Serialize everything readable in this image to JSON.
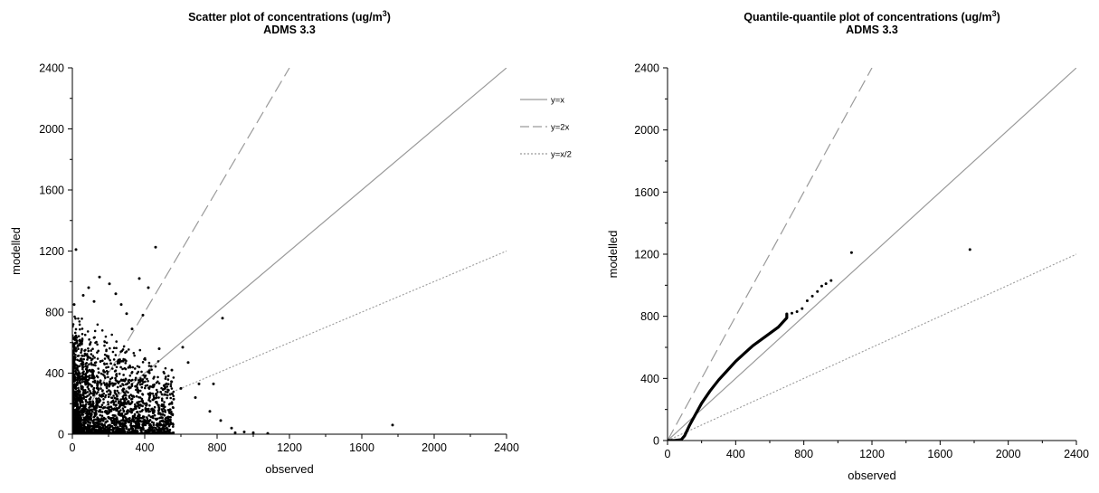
{
  "chart_data": [
    {
      "type": "scatter",
      "title": "Scatter plot of concentrations (ug/m",
      "title_superscript": "3",
      "title_suffix": ")",
      "subtitle": "ADMS 3.3",
      "xlabel": "observed",
      "ylabel": "modelled",
      "xlim": [
        0,
        2400
      ],
      "ylim": [
        0,
        2400
      ],
      "xticks": [
        "0",
        "400",
        "800",
        "1200",
        "1600",
        "2000",
        "2400"
      ],
      "yticks": [
        "0",
        "400",
        "800",
        "1200",
        "1600",
        "2000",
        "2400"
      ],
      "grid": false,
      "legend_placement": "right",
      "reference_lines": [
        {
          "label": "y=x",
          "slope": 1,
          "style": "solid",
          "color": "#9a9a9a"
        },
        {
          "label": "y=2x",
          "slope": 2,
          "style": "dashed",
          "color": "#9a9a9a"
        },
        {
          "label": "y=x/2",
          "slope": 0.5,
          "style": "dotted",
          "color": "#9a9a9a"
        }
      ],
      "cluster": {
        "description_count": 2600,
        "seed": 12345
      },
      "points": [
        {
          "x": 20,
          "y": 1210
        },
        {
          "x": 460,
          "y": 1225
        },
        {
          "x": 830,
          "y": 760
        },
        {
          "x": 1770,
          "y": 60
        },
        {
          "x": 150,
          "y": 1030
        },
        {
          "x": 370,
          "y": 1020
        },
        {
          "x": 420,
          "y": 960
        },
        {
          "x": 205,
          "y": 985
        },
        {
          "x": 240,
          "y": 920
        },
        {
          "x": 90,
          "y": 960
        },
        {
          "x": 60,
          "y": 910
        },
        {
          "x": 390,
          "y": 780
        },
        {
          "x": 480,
          "y": 560
        },
        {
          "x": 610,
          "y": 570
        },
        {
          "x": 640,
          "y": 470
        },
        {
          "x": 550,
          "y": 420
        },
        {
          "x": 700,
          "y": 330
        },
        {
          "x": 780,
          "y": 330
        },
        {
          "x": 760,
          "y": 150
        },
        {
          "x": 820,
          "y": 90
        },
        {
          "x": 880,
          "y": 40
        },
        {
          "x": 900,
          "y": 10
        },
        {
          "x": 950,
          "y": 15
        },
        {
          "x": 1000,
          "y": 10
        },
        {
          "x": 1080,
          "y": 5
        },
        {
          "x": 680,
          "y": 240
        },
        {
          "x": 600,
          "y": 300
        },
        {
          "x": 300,
          "y": 790
        },
        {
          "x": 330,
          "y": 690
        },
        {
          "x": 270,
          "y": 850
        },
        {
          "x": 120,
          "y": 870
        },
        {
          "x": 10,
          "y": 850
        },
        {
          "x": 500,
          "y": 150
        },
        {
          "x": 560,
          "y": 230
        },
        {
          "x": 520,
          "y": 330
        }
      ]
    },
    {
      "type": "scatter",
      "title": "Quantile-quantile plot of concentrations (ug/m",
      "title_superscript": "3",
      "title_suffix": ")",
      "subtitle": "ADMS 3.3",
      "xlabel": "observed",
      "ylabel": "modelled",
      "xlim": [
        0,
        2400
      ],
      "ylim": [
        0,
        2400
      ],
      "xticks": [
        "0",
        "400",
        "800",
        "1200",
        "1600",
        "2000",
        "2400"
      ],
      "yticks": [
        "0",
        "400",
        "800",
        "1200",
        "1600",
        "2000",
        "2400"
      ],
      "grid": false,
      "reference_lines": [
        {
          "slope": 1,
          "style": "solid",
          "color": "#9a9a9a"
        },
        {
          "slope": 2,
          "style": "dashed",
          "color": "#9a9a9a"
        },
        {
          "slope": 0.5,
          "style": "dotted",
          "color": "#9a9a9a"
        }
      ],
      "qq_curve": [
        [
          0,
          0
        ],
        [
          40,
          0
        ],
        [
          80,
          5
        ],
        [
          100,
          30
        ],
        [
          130,
          100
        ],
        [
          160,
          160
        ],
        [
          200,
          240
        ],
        [
          250,
          320
        ],
        [
          300,
          390
        ],
        [
          350,
          450
        ],
        [
          400,
          510
        ],
        [
          450,
          560
        ],
        [
          500,
          610
        ],
        [
          550,
          650
        ],
        [
          600,
          690
        ],
        [
          650,
          730
        ],
        [
          700,
          790
        ],
        [
          700,
          815
        ]
      ],
      "points": [
        {
          "x": 730,
          "y": 820
        },
        {
          "x": 760,
          "y": 830
        },
        {
          "x": 790,
          "y": 850
        },
        {
          "x": 820,
          "y": 900
        },
        {
          "x": 850,
          "y": 930
        },
        {
          "x": 880,
          "y": 960
        },
        {
          "x": 905,
          "y": 995
        },
        {
          "x": 930,
          "y": 1010
        },
        {
          "x": 960,
          "y": 1030
        },
        {
          "x": 1080,
          "y": 1210
        },
        {
          "x": 1775,
          "y": 1230
        }
      ]
    }
  ]
}
